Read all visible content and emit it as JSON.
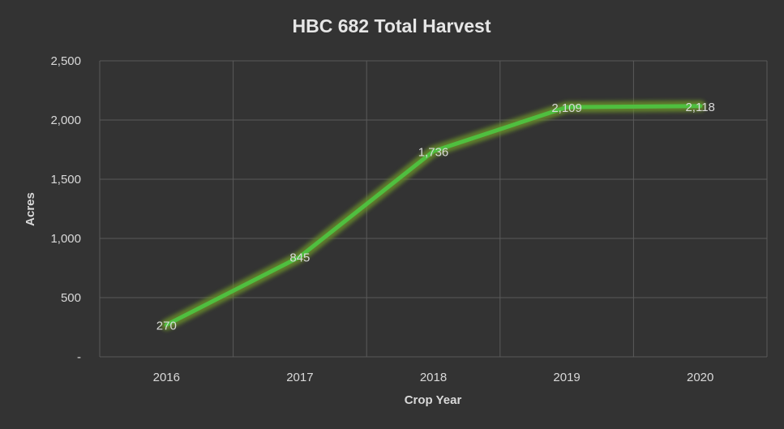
{
  "chart_data": {
    "type": "line",
    "title": "HBC 682 Total Harvest",
    "xlabel": "Crop Year",
    "ylabel": "Acres",
    "categories": [
      "2016",
      "2017",
      "2018",
      "2019",
      "2020"
    ],
    "series": [
      {
        "values": [
          270,
          845,
          1736,
          2109,
          2118
        ],
        "data_labels": [
          "270",
          "845",
          "1,736",
          "2,109",
          "2,118"
        ]
      }
    ],
    "ylim": [
      0,
      2500
    ],
    "y_ticks": [
      {
        "value": 0,
        "label": "-"
      },
      {
        "value": 500,
        "label": "500"
      },
      {
        "value": 1000,
        "label": "1,000"
      },
      {
        "value": 1500,
        "label": "1,500"
      },
      {
        "value": 2000,
        "label": "2,000"
      },
      {
        "value": 2500,
        "label": "2,500"
      }
    ],
    "grid": true,
    "legend": "none",
    "colors": {
      "background": "#333333",
      "line": "#4fbf3f",
      "line_glow": "#6a8f2a",
      "gridline": "#5a5a5a",
      "text": "#d9d9d9"
    }
  }
}
